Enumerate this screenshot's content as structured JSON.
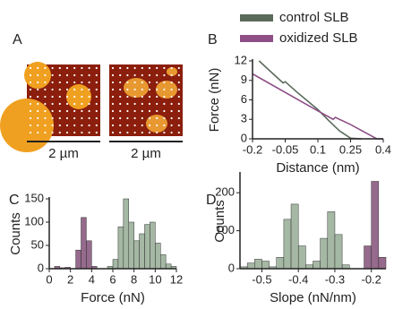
{
  "panel_a": {
    "label": "A",
    "scale_bars": [
      "2 µm",
      "2 µm"
    ]
  },
  "chart_data": [
    {
      "type": "line",
      "panel_label": "B",
      "xlabel": "Distance (nm)",
      "ylabel": "Force (nN)",
      "xlim": [
        -0.2,
        0.4
      ],
      "xticks": [
        -0.2,
        -0.05,
        0.1,
        0.25,
        0.4
      ],
      "ylim": [
        0,
        12
      ],
      "yticks": [
        0,
        3,
        6,
        9,
        12
      ],
      "series": [
        {
          "name": "control SLB",
          "color": "#5b6b5b",
          "x": [
            -0.17,
            -0.06,
            -0.05,
            0.0,
            0.1,
            0.15,
            0.2,
            0.25,
            0.3
          ],
          "values": [
            12,
            8.6,
            8.8,
            7.3,
            4.5,
            2.8,
            1.2,
            0.1,
            0
          ]
        },
        {
          "name": "oxidized SLB",
          "color": "#8e4f86",
          "x": [
            -0.2,
            0.1,
            0.17,
            0.18,
            0.25,
            0.37,
            0.4
          ],
          "values": [
            10,
            4.3,
            3.0,
            3.3,
            2.2,
            0,
            0
          ]
        }
      ]
    },
    {
      "type": "histogram",
      "panel_label": "C",
      "xlabel": "Force (nN)",
      "ylabel": "Counts",
      "xlim": [
        0,
        12
      ],
      "xticks": [
        0,
        2,
        4,
        6,
        8,
        10,
        12
      ],
      "ylim": [
        0,
        150
      ],
      "yticks": [
        0,
        50,
        100,
        150
      ],
      "bins": [
        0,
        0.5,
        1,
        1.5,
        2,
        2.5,
        3,
        3.5,
        4,
        4.5,
        5,
        5.5,
        6,
        6.5,
        7,
        7.5,
        8,
        8.5,
        9,
        9.5,
        10,
        10.5,
        11,
        11.5,
        12
      ],
      "series": [
        {
          "color": "#8a5a80",
          "values": [
            0,
            5,
            2,
            3,
            0,
            40,
            110,
            60,
            5,
            0,
            0,
            0,
            0,
            0,
            0,
            0,
            0,
            0,
            0,
            0,
            0,
            0,
            0,
            0
          ]
        },
        {
          "color": "#9bb09a",
          "values": [
            0,
            0,
            0,
            0,
            0,
            0,
            0,
            0,
            0,
            0,
            0,
            5,
            20,
            90,
            150,
            100,
            60,
            75,
            95,
            100,
            55,
            30,
            10,
            5
          ]
        }
      ]
    },
    {
      "type": "histogram",
      "panel_label": "D",
      "xlabel": "Slope (nN/nm)",
      "ylabel": "Counts",
      "xlim": [
        -0.56,
        -0.16
      ],
      "xticks": [
        -0.5,
        -0.4,
        -0.3,
        -0.2
      ],
      "ylim": [
        0,
        250
      ],
      "yticks": [
        0,
        100,
        200
      ],
      "bins": [
        -0.56,
        -0.54,
        -0.52,
        -0.5,
        -0.48,
        -0.46,
        -0.44,
        -0.42,
        -0.4,
        -0.38,
        -0.36,
        -0.34,
        -0.32,
        -0.3,
        -0.28,
        -0.26,
        -0.24,
        -0.22,
        -0.2,
        -0.18,
        -0.16
      ],
      "series": [
        {
          "color": "#9bb09a",
          "values": [
            5,
            15,
            25,
            20,
            5,
            30,
            130,
            170,
            60,
            10,
            20,
            80,
            150,
            90,
            10,
            0,
            0,
            0,
            0,
            0
          ]
        },
        {
          "color": "#8a5a80",
          "values": [
            0,
            0,
            0,
            0,
            0,
            0,
            0,
            0,
            0,
            0,
            0,
            0,
            0,
            0,
            0,
            0,
            0,
            60,
            230,
            30
          ]
        }
      ]
    }
  ]
}
